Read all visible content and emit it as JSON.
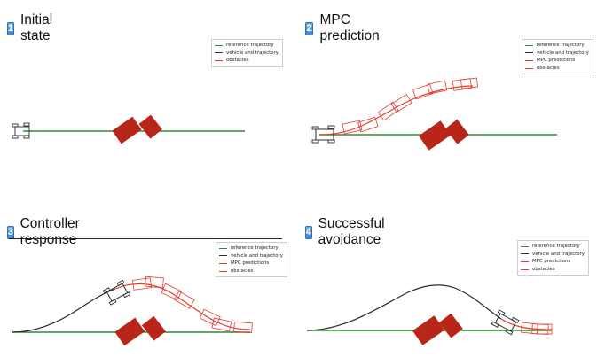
{
  "colors": {
    "reference": "#2e8b2e",
    "vehicle": "#2b2b2b",
    "prediction": "#e8392c",
    "obstacle": "#b8261a",
    "badge": "#3d84cf"
  },
  "panels": [
    {
      "number": "1",
      "title": "Initial state",
      "legend": [
        {
          "label": "reference trajectory",
          "color": "#2e8b2e"
        },
        {
          "label": "vehicle and trajectory",
          "color": "#2b2b2b"
        },
        {
          "label": "obstacles",
          "color": "#e8392c"
        }
      ]
    },
    {
      "number": "2",
      "title": "MPC prediction",
      "legend": [
        {
          "label": "reference trajectory",
          "color": "#2e8b2e"
        },
        {
          "label": "vehicle and trajectory",
          "color": "#2b2b2b"
        },
        {
          "label": "MPC predictions",
          "color": "#e8392c"
        },
        {
          "label": "obstacles",
          "color": "#e8392c"
        }
      ]
    },
    {
      "number": "3",
      "title": "Controller response",
      "legend": [
        {
          "label": "reference trajectory",
          "color": "#2e8b2e"
        },
        {
          "label": "vehicle and trajectory",
          "color": "#2b2b2b"
        },
        {
          "label": "MPC predictions",
          "color": "#e8392c"
        },
        {
          "label": "obstacles",
          "color": "#e8392c"
        }
      ]
    },
    {
      "number": "4",
      "title": "Successful avoidance",
      "legend": [
        {
          "label": "reference trajectory",
          "color": "#2e8b2e"
        },
        {
          "label": "vehicle and trajectory",
          "color": "#2b2b2b"
        },
        {
          "label": "MPC predictions",
          "color": "#e8392c"
        },
        {
          "label": "obstacles",
          "color": "#e8392c"
        }
      ]
    }
  ]
}
